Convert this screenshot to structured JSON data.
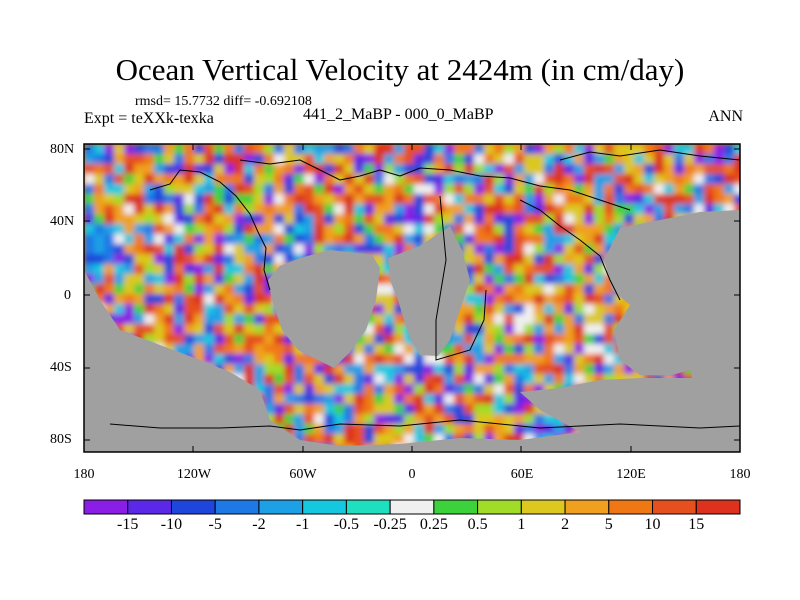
{
  "title": "Ocean Vertical Velocity at 2424m (in cm/day)",
  "stats": "rmsd= 15.7732 diff= -0.692108",
  "experiment": "Expt = teXXk-texka",
  "comparison": "441_2_MaBP - 000_0_MaBP",
  "season": "ANN",
  "y_ticks": [
    "80N",
    "40N",
    "0",
    "40S",
    "80S"
  ],
  "x_ticks": [
    "180",
    "120W",
    "60W",
    "0",
    "60E",
    "120E",
    "180"
  ],
  "colorbar": {
    "labels": [
      "-15",
      "-10",
      "-5",
      "-2",
      "-1",
      "-0.5",
      "-0.25",
      "0.25",
      "0.5",
      "1",
      "2",
      "5",
      "10",
      "15"
    ],
    "colors": [
      "#8a1ee6",
      "#5a28e6",
      "#1e46dc",
      "#1e78e6",
      "#1ea0e6",
      "#14c8e0",
      "#1ee0c0",
      "#f0f0f0",
      "#3cd23c",
      "#a0dc28",
      "#dcc81e",
      "#f0a01e",
      "#f07814",
      "#e6501e",
      "#dc321e"
    ]
  },
  "land_color": "#a0a0a0",
  "ocean_palette": {
    "warm": [
      "#dc321e",
      "#e6501e",
      "#f07814",
      "#f0a01e",
      "#dcc81e"
    ],
    "cool": [
      "#1ea0e6",
      "#1e78e6",
      "#1e46dc",
      "#5a28e6",
      "#8a1ee6",
      "#14c8e0"
    ],
    "neutral": [
      "#f0f0f0",
      "#a0dc28",
      "#3cd23c"
    ]
  }
}
